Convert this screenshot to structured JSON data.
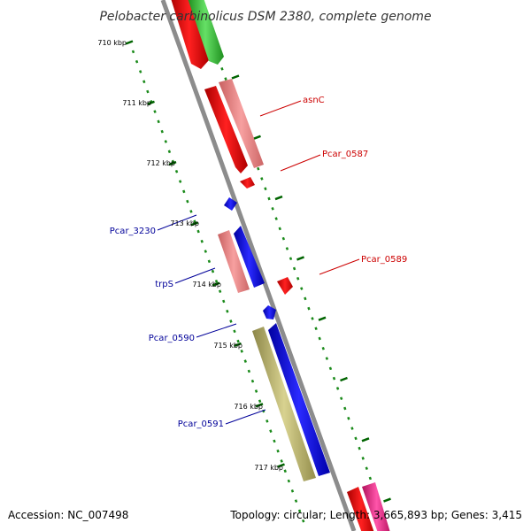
{
  "title": "Pelobacter carbinolicus DSM 2380, complete genome",
  "accession_label": "Accession: NC_007498",
  "summary_label": "Topology: circular; Length: 3,665,893 bp; Genes: 3,415",
  "colors": {
    "backbone": "#8c8c8c",
    "red_gene": "#ff0000",
    "pink_gene": "#f08c8c",
    "blue_gene": "#0000ff",
    "olive_gene": "#bdb76b",
    "green_gene": "#33cc33",
    "magenta_gene": "#ff1493",
    "tick": "#008000",
    "forward_label": "#cc0000",
    "reverse_label": "#000099"
  },
  "ticks": [
    {
      "label": "710 kbp"
    },
    {
      "label": "711 kbp"
    },
    {
      "label": "712 kbp"
    },
    {
      "label": "713 kbp"
    },
    {
      "label": "714 kbp"
    },
    {
      "label": "715 kbp"
    },
    {
      "label": "716 kbp"
    },
    {
      "label": "717 kbp"
    }
  ],
  "gene_labels": [
    {
      "name": "asnC",
      "strand": "forward"
    },
    {
      "name": "Pcar_0587",
      "strand": "forward"
    },
    {
      "name": "Pcar_0589",
      "strand": "forward"
    },
    {
      "name": "Pcar_3230",
      "strand": "reverse"
    },
    {
      "name": "trpS",
      "strand": "reverse"
    },
    {
      "name": "Pcar_0590",
      "strand": "reverse"
    },
    {
      "name": "Pcar_0591",
      "strand": "reverse"
    }
  ]
}
